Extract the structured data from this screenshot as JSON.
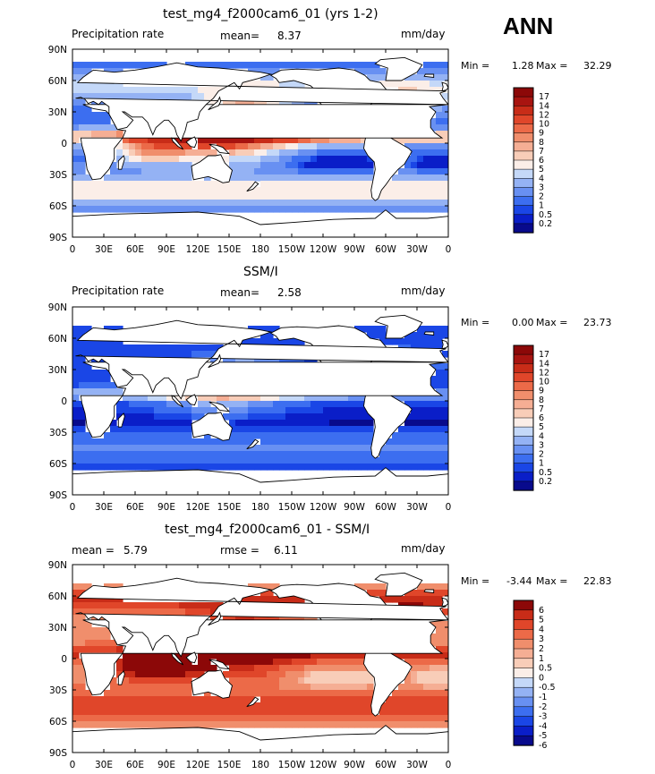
{
  "season_label": "ANN",
  "colors": {
    "positive_scale": [
      "#080a8c",
      "#0a1ec8",
      "#1a46e6",
      "#3c6ef0",
      "#6890f2",
      "#94b2f4",
      "#c4d8f8",
      "#fbeee8",
      "#f8cdb8",
      "#f5ae94",
      "#f08e6c",
      "#ec6a48",
      "#e0462a",
      "#c82c18",
      "#a81410",
      "#8c0808"
    ],
    "difference_scale": [
      "#080a8c",
      "#0a1ec8",
      "#1a46e6",
      "#3c6ef0",
      "#6890f2",
      "#94b2f4",
      "#c4d8f8",
      "#fbeee8",
      "#f8cdb8",
      "#f5ae94",
      "#f08e6c",
      "#ec6a48",
      "#e0462a",
      "#c82c18",
      "#8c0808"
    ]
  },
  "chart_data": [
    {
      "type": "heatmap",
      "title": "test_mg4_f2000cam6_01 (yrs 1-2)",
      "left_label": "Precipitation rate",
      "stat_label": "mean=",
      "stat_value": "8.37",
      "units": "mm/day",
      "min_label": "Min =",
      "min_value": "1.28",
      "max_label": "Max =",
      "max_value": "32.29",
      "colorbar_levels": [
        "17",
        "14",
        "12",
        "10",
        "9",
        "8",
        "7",
        "6",
        "5",
        "4",
        "3",
        "2",
        "1",
        "0.5",
        "0.2"
      ],
      "x_tick_labels": [
        "0",
        "30E",
        "60E",
        "90E",
        "120E",
        "150E",
        "180",
        "150W",
        "120W",
        "90W",
        "60W",
        "30W",
        "0"
      ],
      "y_tick_labels": [
        "90N",
        "60N",
        "30N",
        "0",
        "30S",
        "60S",
        "90S"
      ],
      "xlim": [
        0,
        360
      ],
      "ylim": [
        -90,
        90
      ]
    },
    {
      "type": "heatmap",
      "title": "SSM/I",
      "left_label": "Precipitation rate",
      "stat_label": "mean=",
      "stat_value": "2.58",
      "units": "mm/day",
      "min_label": "Min =",
      "min_value": "0.00",
      "max_label": "Max =",
      "max_value": "23.73",
      "colorbar_levels": [
        "17",
        "14",
        "12",
        "10",
        "9",
        "8",
        "7",
        "6",
        "5",
        "4",
        "3",
        "2",
        "1",
        "0.5",
        "0.2"
      ],
      "x_tick_labels": [
        "0",
        "30E",
        "60E",
        "90E",
        "120E",
        "150E",
        "180",
        "150W",
        "120W",
        "90W",
        "60W",
        "30W",
        "0"
      ],
      "y_tick_labels": [
        "90N",
        "60N",
        "30N",
        "0",
        "30S",
        "60S",
        "90S"
      ],
      "xlim": [
        0,
        360
      ],
      "ylim": [
        -90,
        90
      ]
    },
    {
      "type": "heatmap",
      "title": "test_mg4_f2000cam6_01 - SSM/I",
      "mean_label": "mean =",
      "mean_value": "5.79",
      "rmse_label": "rmse =",
      "rmse_value": "6.11",
      "units": "mm/day",
      "min_label": "Min =",
      "min_value": "-3.44",
      "max_label": "Max =",
      "max_value": "22.83",
      "colorbar_levels": [
        "6",
        "5",
        "4",
        "3",
        "2",
        "1",
        "0.5",
        "0",
        "-0.5",
        "-1",
        "-2",
        "-3",
        "-4",
        "-5",
        "-6"
      ],
      "x_tick_labels": [
        "0",
        "30E",
        "60E",
        "90E",
        "120E",
        "150E",
        "180",
        "150W",
        "120W",
        "90W",
        "60W",
        "30W",
        "0"
      ],
      "y_tick_labels": [
        "90N",
        "60N",
        "30N",
        "0",
        "30S",
        "60S",
        "90S"
      ],
      "xlim": [
        0,
        360
      ],
      "ylim": [
        -90,
        90
      ]
    }
  ]
}
